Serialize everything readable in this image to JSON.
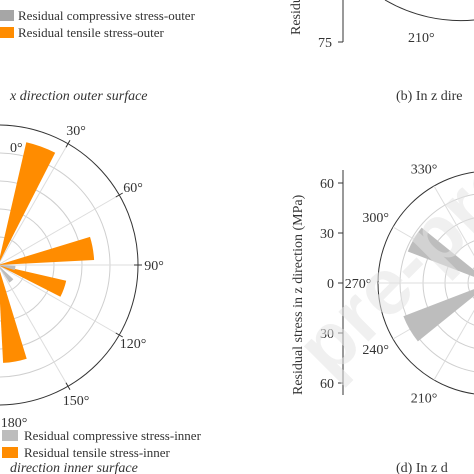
{
  "figure": {
    "top_left_legend": [
      {
        "label": "Residual compressive stress-outer",
        "color": "#a6a6a6"
      },
      {
        "label": "Residual tensile stress-outer",
        "color": "#ff8c00"
      }
    ],
    "top_left_caption": "x direction outer surface",
    "top_right_caption": "(b) In z dire",
    "top_right_partial_ylabel": "Residu",
    "top_right_partial_tick": "75",
    "top_right_partial_angle": "210°",
    "bottom_left_legend": [
      {
        "label": "Residual compressive stress-inner",
        "color": "#bdbdbd"
      },
      {
        "label": "Residual tensile stress-inner",
        "color": "#ff8c00"
      }
    ],
    "bottom_left_caption": "direction inner surface",
    "bottom_right_caption": "(d) In z d",
    "watermark": "pre-proof"
  },
  "chart_data": [
    {
      "type": "polar-bar",
      "panel": "bottom-left",
      "angular_ticks": [
        "0°",
        "30°",
        "60°",
        "90°",
        "120°",
        "150°",
        "180°"
      ],
      "series": [
        {
          "name": "Residual tensile stress-inner",
          "color": "#ff8c00",
          "bars": [
            {
              "angle": 20,
              "value": 72
            },
            {
              "angle": 80,
              "value": 55
            },
            {
              "angle": 110,
              "value": 40
            },
            {
              "angle": 170,
              "value": 56
            }
          ]
        },
        {
          "name": "Residual compressive stress-inner",
          "color": "#bdbdbd",
          "bars": [
            {
              "angle": 140,
              "value": 12
            },
            {
              "angle": 100,
              "value": 10
            }
          ]
        }
      ]
    },
    {
      "type": "polar-bar",
      "panel": "bottom-right",
      "ylabel": "Residual stress in z direction (MPa)",
      "y_ticks": [
        "60",
        "30",
        "0",
        "30",
        "60"
      ],
      "angular_ticks": [
        "330°",
        "300°",
        "270°",
        "240°",
        "210°"
      ],
      "series": [
        {
          "name": "Residual compressive stress-inner",
          "color": "#bdbdbd",
          "bars": [
            {
              "angle": 300,
              "value": 55
            },
            {
              "angle": 240,
              "value": 58
            }
          ]
        },
        {
          "name": "Residual tensile stress-inner",
          "color": "#ff8c00",
          "bars": [
            {
              "angle": 250,
              "value": 8
            }
          ]
        }
      ]
    }
  ]
}
